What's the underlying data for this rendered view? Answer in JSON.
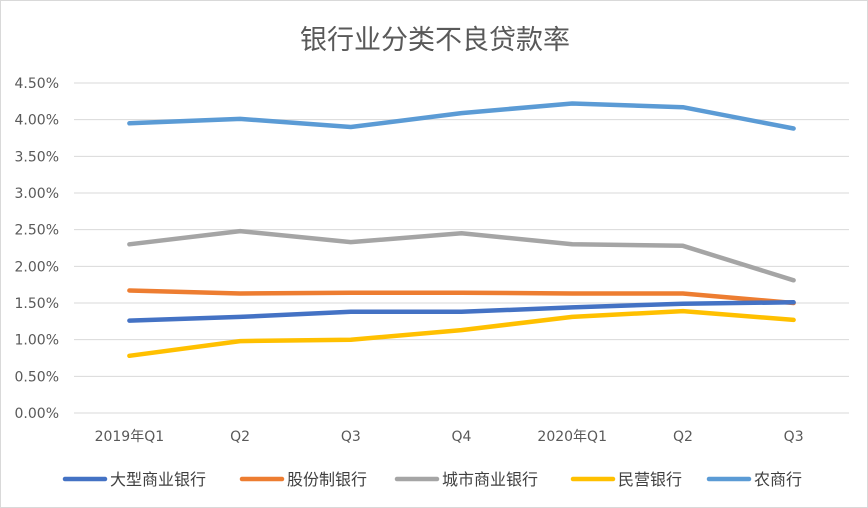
{
  "chart_data": {
    "type": "line",
    "title": "银行业分类不良贷款率",
    "xlabel": "",
    "ylabel": "",
    "categories": [
      "2019年Q1",
      "Q2",
      "Q3",
      "Q4",
      "2020年Q1",
      "Q2",
      "Q3"
    ],
    "ylim": [
      0,
      4.5
    ],
    "yticks": [
      "0.00%",
      "0.50%",
      "1.00%",
      "1.50%",
      "2.00%",
      "2.50%",
      "3.00%",
      "3.50%",
      "4.00%",
      "4.50%"
    ],
    "grid": true,
    "legend_position": "bottom",
    "series": [
      {
        "name": "大型商业银行",
        "color": "#4472C4",
        "values": [
          1.26,
          1.31,
          1.38,
          1.38,
          1.44,
          1.49,
          1.51
        ]
      },
      {
        "name": "股份制银行",
        "color": "#ED7D31",
        "values": [
          1.67,
          1.63,
          1.64,
          1.64,
          1.63,
          1.63,
          1.5
        ]
      },
      {
        "name": "城市商业银行",
        "color": "#A5A5A5",
        "values": [
          2.3,
          2.48,
          2.33,
          2.45,
          2.3,
          2.28,
          1.81
        ]
      },
      {
        "name": "民营银行",
        "color": "#FFC000",
        "values": [
          0.78,
          0.98,
          1.0,
          1.13,
          1.31,
          1.39,
          1.27
        ]
      },
      {
        "name": "农商行",
        "color": "#5B9BD5",
        "values": [
          3.95,
          4.01,
          3.9,
          4.09,
          4.22,
          4.17,
          3.88
        ]
      }
    ]
  }
}
